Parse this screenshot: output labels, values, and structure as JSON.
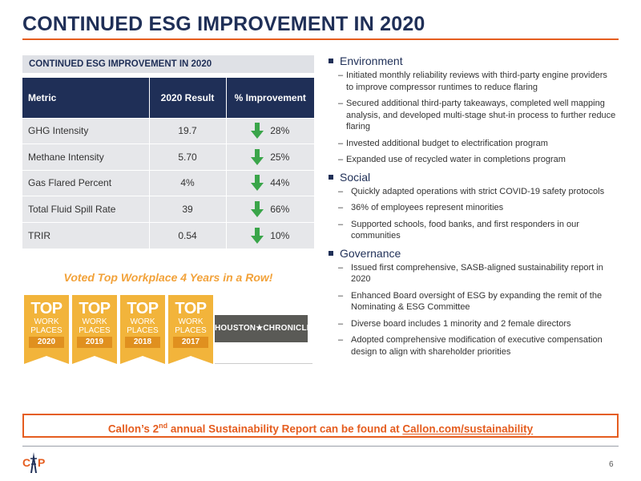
{
  "page": {
    "title": "CONTINUED ESG IMPROVEMENT IN 2020",
    "page_number": "6"
  },
  "table": {
    "caption": "CONTINUED ESG IMPROVEMENT IN 2020",
    "headers": [
      "Metric",
      "2020 Result",
      "% Improvement"
    ],
    "rows": [
      {
        "metric": "GHG Intensity",
        "result": "19.7",
        "improvement": "28%"
      },
      {
        "metric": "Methane Intensity",
        "result": "5.70",
        "improvement": "25%"
      },
      {
        "metric": "Gas Flared Percent",
        "result": "4%",
        "improvement": "44%"
      },
      {
        "metric": "Total Fluid Spill Rate",
        "result": "39",
        "improvement": "66%"
      },
      {
        "metric": "TRIR",
        "result": "0.54",
        "improvement": "10%"
      }
    ],
    "arrow_icon": "down-arrow-icon",
    "arrow_color": "#3aa54a"
  },
  "awards": {
    "heading": "Voted Top Workplace 4 Years in a Row!",
    "badges": [
      {
        "top": "TOP",
        "work": "WORK",
        "places": "PLACES",
        "year": "2020"
      },
      {
        "top": "TOP",
        "work": "WORK",
        "places": "PLACES",
        "year": "2019"
      },
      {
        "top": "TOP",
        "work": "WORK",
        "places": "PLACES",
        "year": "2018"
      },
      {
        "top": "TOP",
        "work": "WORK",
        "places": "PLACES",
        "year": "2017"
      }
    ],
    "chronicle_logo": "HOUSTON★CHRONICLE"
  },
  "sections": [
    {
      "label": "Environment",
      "items": [
        "Initiated monthly reliability reviews with third-party engine providers to improve compressor runtimes to reduce flaring",
        "Secured additional third-party takeaways, completed well mapping analysis, and developed multi-stage shut-in process to further reduce flaring",
        "Invested additional budget to electrification program",
        "Expanded use of recycled water in completions program"
      ]
    },
    {
      "label": "Social",
      "items": [
        "Quickly adapted operations with strict COVID-19 safety protocols",
        "36% of employees represent minorities",
        "Supported schools, food banks, and first responders in our communities"
      ]
    },
    {
      "label": "Governance",
      "items": [
        "Issued first comprehensive, SASB-aligned sustainability report in 2020",
        "Enhanced Board oversight of ESG by expanding the remit of the Nominating & ESG Committee",
        "Diverse board includes 1 minority and 2 female directors",
        "Adopted comprehensive modification of executive compensation design to align with shareholder priorities"
      ]
    }
  ],
  "dash": "–",
  "callout": {
    "prefix": "Callon’s 2",
    "superscript": "nd",
    "middle": " annual Sustainability Report can be found at ",
    "link": "Callon.com/sustainability"
  },
  "colors": {
    "navy": "#1f2f57",
    "orange": "#e55d1f",
    "gold": "#f2b43b"
  },
  "logo": "callon-logo-icon"
}
